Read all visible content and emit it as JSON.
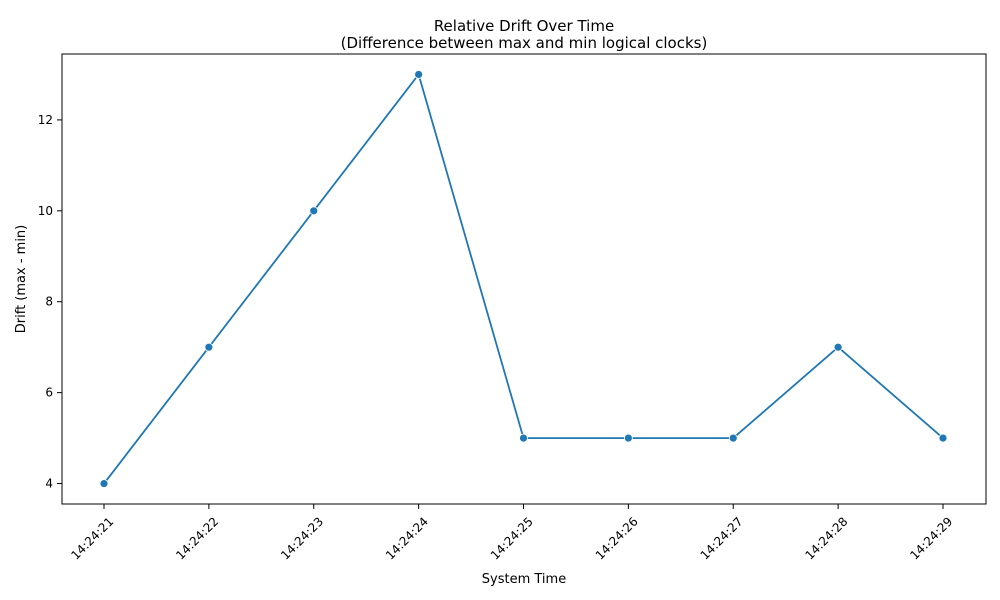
{
  "chart_data": {
    "type": "line",
    "title": "Relative Drift Over Time",
    "subtitle": "(Difference between max and min logical clocks)",
    "xlabel": "System Time",
    "ylabel": "Drift (max - min)",
    "x": [
      "14:24:21",
      "14:24:22",
      "14:24:23",
      "14:24:24",
      "14:24:25",
      "14:24:26",
      "14:24:27",
      "14:24:28",
      "14:24:29"
    ],
    "series": [
      {
        "values": [
          4,
          7,
          10,
          13,
          5,
          5,
          5,
          7,
          5
        ]
      }
    ],
    "ylim": [
      3.55,
      13.45
    ],
    "yticks": [
      4,
      6,
      8,
      10,
      12
    ],
    "grid": false,
    "legend": "none",
    "xtick_rotation": 45,
    "line_color": "#1f77b4",
    "marker": "circle"
  }
}
